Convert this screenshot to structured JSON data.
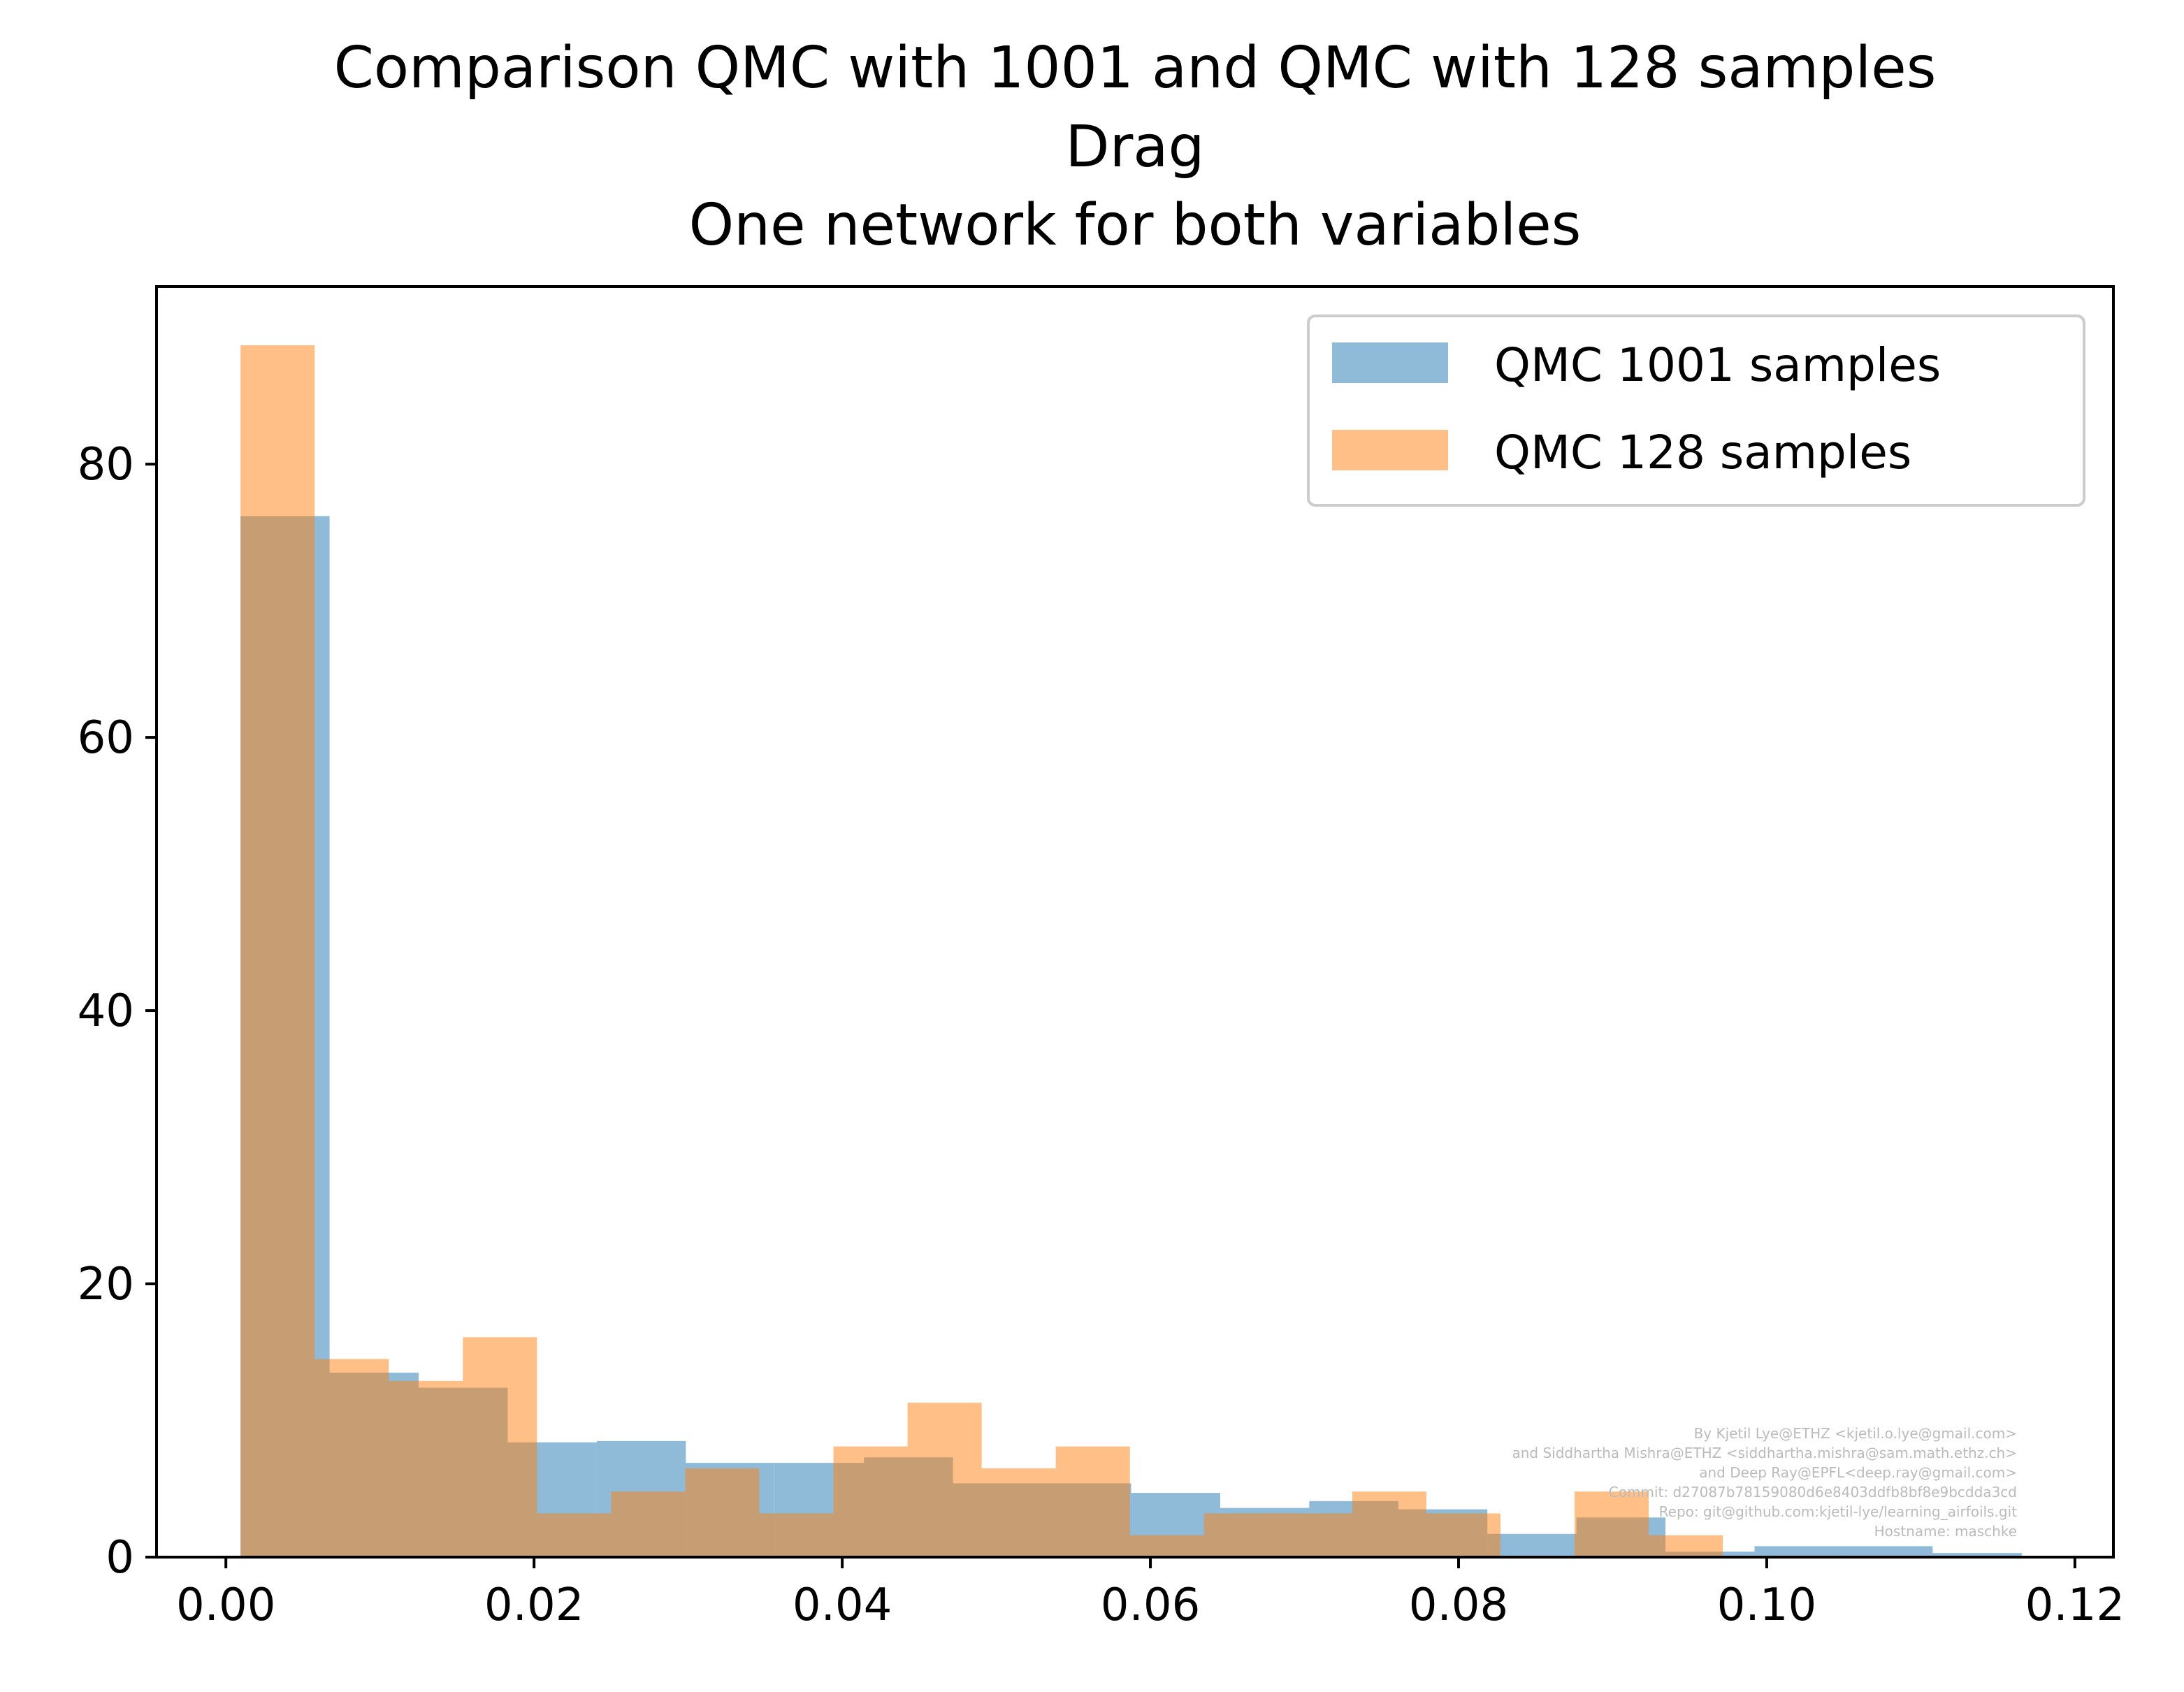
{
  "chart_data": {
    "type": "bar",
    "title_lines": [
      "Comparison QMC with 1001 and QMC with 128 samples",
      "Drag",
      "One network for both variables"
    ],
    "xlabel": "",
    "ylabel": "",
    "xlim": [
      -0.0045,
      0.1225
    ],
    "ylim": [
      0,
      93
    ],
    "x_ticks": [
      0.0,
      0.02,
      0.04,
      0.06,
      0.08,
      0.1,
      0.12
    ],
    "x_tick_labels": [
      "0.00",
      "0.02",
      "0.04",
      "0.06",
      "0.08",
      "0.10",
      "0.12"
    ],
    "y_ticks": [
      0,
      20,
      40,
      60,
      80
    ],
    "y_tick_labels": [
      "0",
      "20",
      "40",
      "60",
      "80"
    ],
    "grid": false,
    "legend_position": "top-right",
    "series": [
      {
        "name": "QMC 1001 samples",
        "color": "#1f77b4",
        "alpha": 0.5,
        "bins": [
          {
            "x0": 0.00095,
            "x1": 0.00673,
            "y": 76.2
          },
          {
            "x0": 0.00673,
            "x1": 0.01251,
            "y": 13.5
          },
          {
            "x0": 0.01251,
            "x1": 0.01829,
            "y": 12.4
          },
          {
            "x0": 0.01829,
            "x1": 0.02407,
            "y": 8.4
          },
          {
            "x0": 0.02407,
            "x1": 0.02985,
            "y": 8.5
          },
          {
            "x0": 0.02985,
            "x1": 0.03563,
            "y": 6.9
          },
          {
            "x0": 0.03563,
            "x1": 0.04141,
            "y": 6.9
          },
          {
            "x0": 0.04141,
            "x1": 0.04719,
            "y": 7.3
          },
          {
            "x0": 0.04719,
            "x1": 0.05297,
            "y": 5.4
          },
          {
            "x0": 0.05297,
            "x1": 0.05875,
            "y": 5.4
          },
          {
            "x0": 0.05875,
            "x1": 0.06453,
            "y": 4.7
          },
          {
            "x0": 0.06453,
            "x1": 0.07031,
            "y": 3.6
          },
          {
            "x0": 0.07031,
            "x1": 0.07609,
            "y": 4.1
          },
          {
            "x0": 0.07609,
            "x1": 0.08187,
            "y": 3.5
          },
          {
            "x0": 0.08187,
            "x1": 0.08765,
            "y": 1.7
          },
          {
            "x0": 0.08765,
            "x1": 0.09343,
            "y": 2.9
          },
          {
            "x0": 0.09343,
            "x1": 0.09921,
            "y": 0.4
          },
          {
            "x0": 0.09921,
            "x1": 0.10499,
            "y": 0.8
          },
          {
            "x0": 0.10499,
            "x1": 0.11077,
            "y": 0.8
          },
          {
            "x0": 0.11077,
            "x1": 0.11655,
            "y": 0.3
          }
        ]
      },
      {
        "name": "QMC 128 samples",
        "color": "#ff7f0e",
        "alpha": 0.5,
        "bins": [
          {
            "x0": 0.00095,
            "x1": 0.00576,
            "y": 88.7
          },
          {
            "x0": 0.00576,
            "x1": 0.01057,
            "y": 14.5
          },
          {
            "x0": 0.01057,
            "x1": 0.01538,
            "y": 12.9
          },
          {
            "x0": 0.01538,
            "x1": 0.02019,
            "y": 16.1
          },
          {
            "x0": 0.02019,
            "x1": 0.025,
            "y": 3.2
          },
          {
            "x0": 0.025,
            "x1": 0.02981,
            "y": 4.8
          },
          {
            "x0": 0.02981,
            "x1": 0.03462,
            "y": 6.5
          },
          {
            "x0": 0.03462,
            "x1": 0.03943,
            "y": 3.2
          },
          {
            "x0": 0.03943,
            "x1": 0.04424,
            "y": 8.1
          },
          {
            "x0": 0.04424,
            "x1": 0.04905,
            "y": 11.3
          },
          {
            "x0": 0.04905,
            "x1": 0.05386,
            "y": 6.5
          },
          {
            "x0": 0.05386,
            "x1": 0.05867,
            "y": 8.1
          },
          {
            "x0": 0.05867,
            "x1": 0.06348,
            "y": 1.6
          },
          {
            "x0": 0.06348,
            "x1": 0.06829,
            "y": 3.2
          },
          {
            "x0": 0.06829,
            "x1": 0.0731,
            "y": 3.2
          },
          {
            "x0": 0.0731,
            "x1": 0.07791,
            "y": 4.8
          },
          {
            "x0": 0.07791,
            "x1": 0.08272,
            "y": 3.2
          },
          {
            "x0": 0.08272,
            "x1": 0.08753,
            "y": 0.0
          },
          {
            "x0": 0.08753,
            "x1": 0.09234,
            "y": 4.8
          },
          {
            "x0": 0.09234,
            "x1": 0.09715,
            "y": 1.6
          }
        ]
      }
    ]
  },
  "watermark_lines": [
    "By Kjetil Lye@ETHZ <kjetil.o.lye@gmail.com>",
    "and Siddhartha Mishra@ETHZ <siddhartha.mishra@sam.math.ethz.ch>",
    "and Deep Ray@EPFL<deep.ray@gmail.com>",
    "Commit: d27087b78159080d6e8403ddfb8bf8e9bcdda3cd",
    "Repo: git@github.com:kjetil-lye/learning_airfoils.git",
    "Hostname: maschke"
  ]
}
